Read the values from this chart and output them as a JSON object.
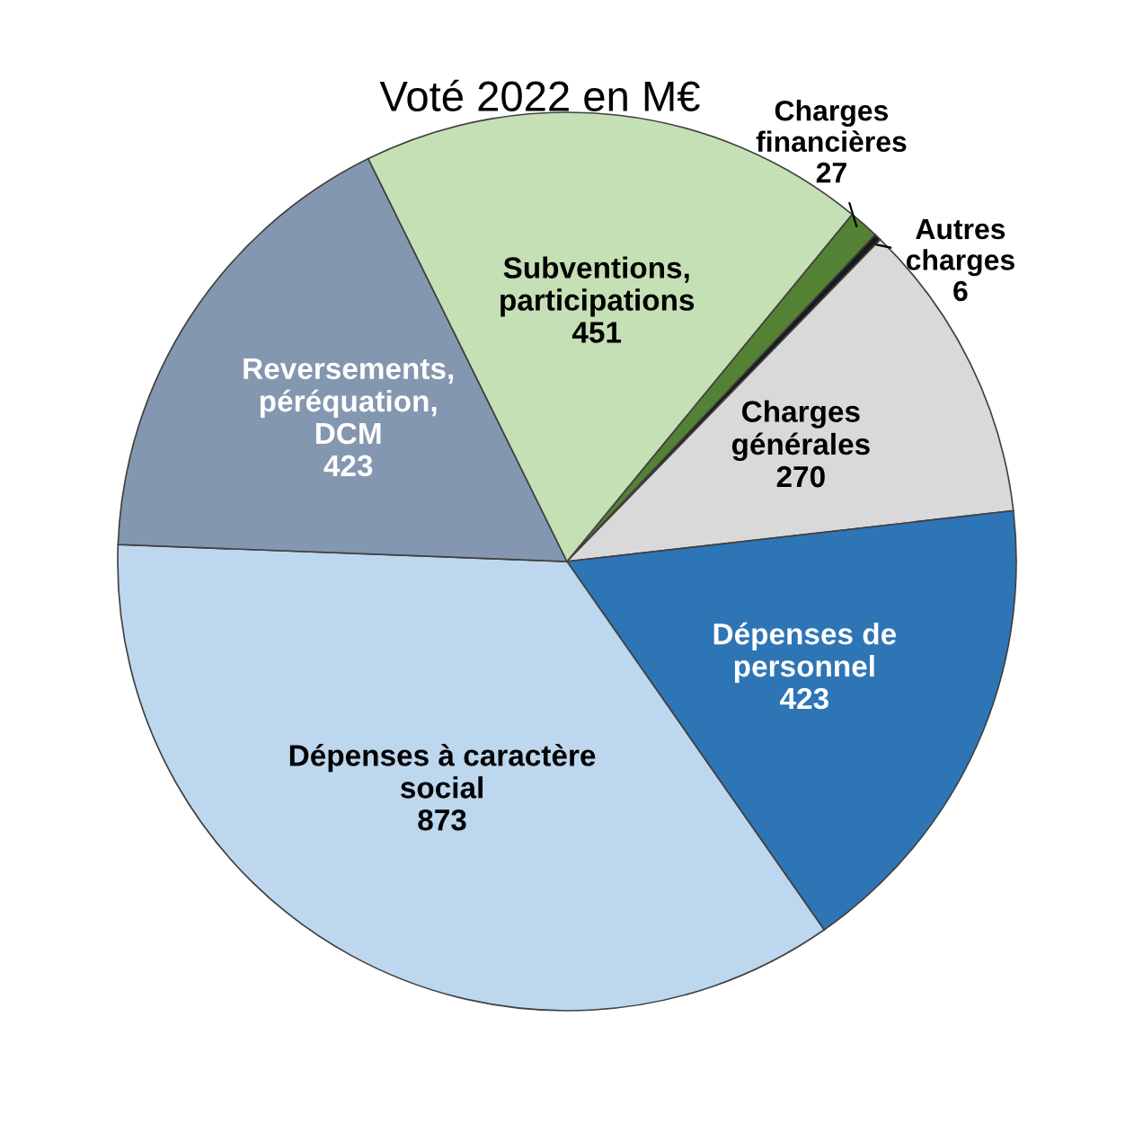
{
  "chart_data": {
    "type": "pie",
    "title": "Voté 2022 en M€",
    "categories": [
      "Charges\nfinancières",
      "Autres\ncharges",
      "Charges\ngénérales",
      "Dépenses de\npersonnel",
      "Dépenses à caractère\nsocial",
      "Reversements,\npéréquation,\nDCM",
      "Subventions,\nparticipations"
    ],
    "values": [
      27,
      6,
      270,
      423,
      873,
      423,
      451
    ],
    "colors": [
      "#548235",
      "#1a1a1a",
      "#d9d9d9",
      "#2e75b6",
      "#bdd7ee",
      "#8497b0",
      "#c5e0b4"
    ],
    "data_labels": true
  }
}
